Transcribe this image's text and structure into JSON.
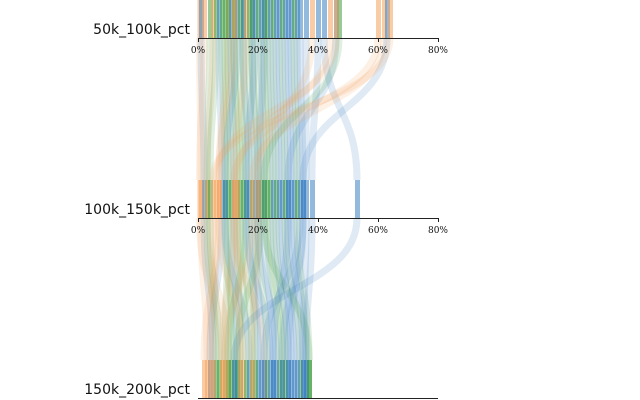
{
  "chart_data": {
    "type": "parallel-sets",
    "title": "",
    "palette": {
      "orange": "#f5a25c",
      "green": "#3f9e3f",
      "blue": "#3b7fbf"
    },
    "dimensions": [
      {
        "name": "50k_100k_pct",
        "ticks": [
          "0%",
          "20%",
          "40%",
          "60%",
          "80%"
        ],
        "range": [
          0,
          80
        ]
      },
      {
        "name": "100k_150k_pct",
        "ticks": [
          "0%",
          "20%",
          "40%",
          "60%",
          "80%"
        ],
        "range": [
          0,
          80
        ]
      },
      {
        "name": "150k_200k_pct",
        "ticks": [],
        "range": [
          0,
          80
        ]
      }
    ],
    "records": [
      {
        "c": "orange",
        "v": [
          0.5,
          1,
          3
        ]
      },
      {
        "c": "blue",
        "v": [
          1,
          2,
          5
        ]
      },
      {
        "c": "orange",
        "v": [
          2,
          0.5,
          8
        ]
      },
      {
        "c": "green",
        "v": [
          4,
          3,
          6
        ]
      },
      {
        "c": "orange",
        "v": [
          5,
          3,
          10
        ]
      },
      {
        "c": "green",
        "v": [
          6,
          4,
          7
        ]
      },
      {
        "c": "blue",
        "v": [
          7,
          8,
          4
        ]
      },
      {
        "c": "green",
        "v": [
          8,
          9,
          12
        ]
      },
      {
        "c": "green",
        "v": [
          9,
          10,
          9
        ]
      },
      {
        "c": "orange",
        "v": [
          10,
          7,
          15
        ]
      },
      {
        "c": "green",
        "v": [
          10,
          11,
          11
        ]
      },
      {
        "c": "blue",
        "v": [
          11,
          12,
          13
        ]
      },
      {
        "c": "green",
        "v": [
          12,
          13,
          14
        ]
      },
      {
        "c": "green",
        "v": [
          12,
          14,
          16
        ]
      },
      {
        "c": "blue",
        "v": [
          13,
          9,
          17
        ]
      },
      {
        "c": "green",
        "v": [
          14,
          15,
          18
        ]
      },
      {
        "c": "green",
        "v": [
          15,
          16,
          10
        ]
      },
      {
        "c": "blue",
        "v": [
          15,
          17,
          20
        ]
      },
      {
        "c": "orange",
        "v": [
          16,
          12,
          22
        ]
      },
      {
        "c": "green",
        "v": [
          17,
          18,
          19
        ]
      },
      {
        "c": "blue",
        "v": [
          18,
          19,
          21
        ]
      },
      {
        "c": "green",
        "v": [
          18,
          20,
          23
        ]
      },
      {
        "c": "blue",
        "v": [
          19,
          16,
          24
        ]
      },
      {
        "c": "green",
        "v": [
          20,
          21,
          13
        ]
      },
      {
        "c": "blue",
        "v": [
          21,
          22,
          25
        ]
      },
      {
        "c": "green",
        "v": [
          22,
          23,
          27
        ]
      },
      {
        "c": "blue",
        "v": [
          22,
          20,
          26
        ]
      },
      {
        "c": "green",
        "v": [
          23,
          24,
          28
        ]
      },
      {
        "c": "blue",
        "v": [
          24,
          25,
          30
        ]
      },
      {
        "c": "green",
        "v": [
          25,
          26,
          29
        ]
      },
      {
        "c": "blue",
        "v": [
          26,
          27,
          32
        ]
      },
      {
        "c": "blue",
        "v": [
          27,
          28,
          31
        ]
      },
      {
        "c": "green",
        "v": [
          28,
          29,
          34
        ]
      },
      {
        "c": "blue",
        "v": [
          29,
          30,
          33
        ]
      },
      {
        "c": "blue",
        "v": [
          30,
          31,
          35
        ]
      },
      {
        "c": "blue",
        "v": [
          31,
          32,
          36
        ]
      },
      {
        "c": "green",
        "v": [
          32,
          33,
          37
        ]
      },
      {
        "c": "blue",
        "v": [
          33,
          34,
          22
        ]
      },
      {
        "c": "blue",
        "v": [
          34,
          35,
          28
        ]
      },
      {
        "c": "blue",
        "v": [
          36,
          36,
          35
        ]
      },
      {
        "c": "orange",
        "v": [
          38,
          20,
          18
        ]
      },
      {
        "c": "blue",
        "v": [
          40,
          38,
          36
        ]
      },
      {
        "c": "blue",
        "v": [
          42,
          53,
          12
        ]
      },
      {
        "c": "orange",
        "v": [
          44,
          13,
          14
        ]
      },
      {
        "c": "blue",
        "v": [
          46,
          30,
          25
        ]
      },
      {
        "c": "green",
        "v": [
          47,
          22,
          37
        ]
      },
      {
        "c": "orange",
        "v": [
          60,
          12,
          8
        ]
      },
      {
        "c": "orange",
        "v": [
          62,
          18,
          9
        ]
      },
      {
        "c": "blue",
        "v": [
          63,
          35,
          30
        ]
      },
      {
        "c": "orange",
        "v": [
          64,
          5,
          4
        ]
      },
      {
        "c": "orange",
        "v": [
          46,
          6,
          5
        ]
      },
      {
        "c": "orange",
        "v": [
          12,
          7,
          2
        ]
      }
    ]
  }
}
